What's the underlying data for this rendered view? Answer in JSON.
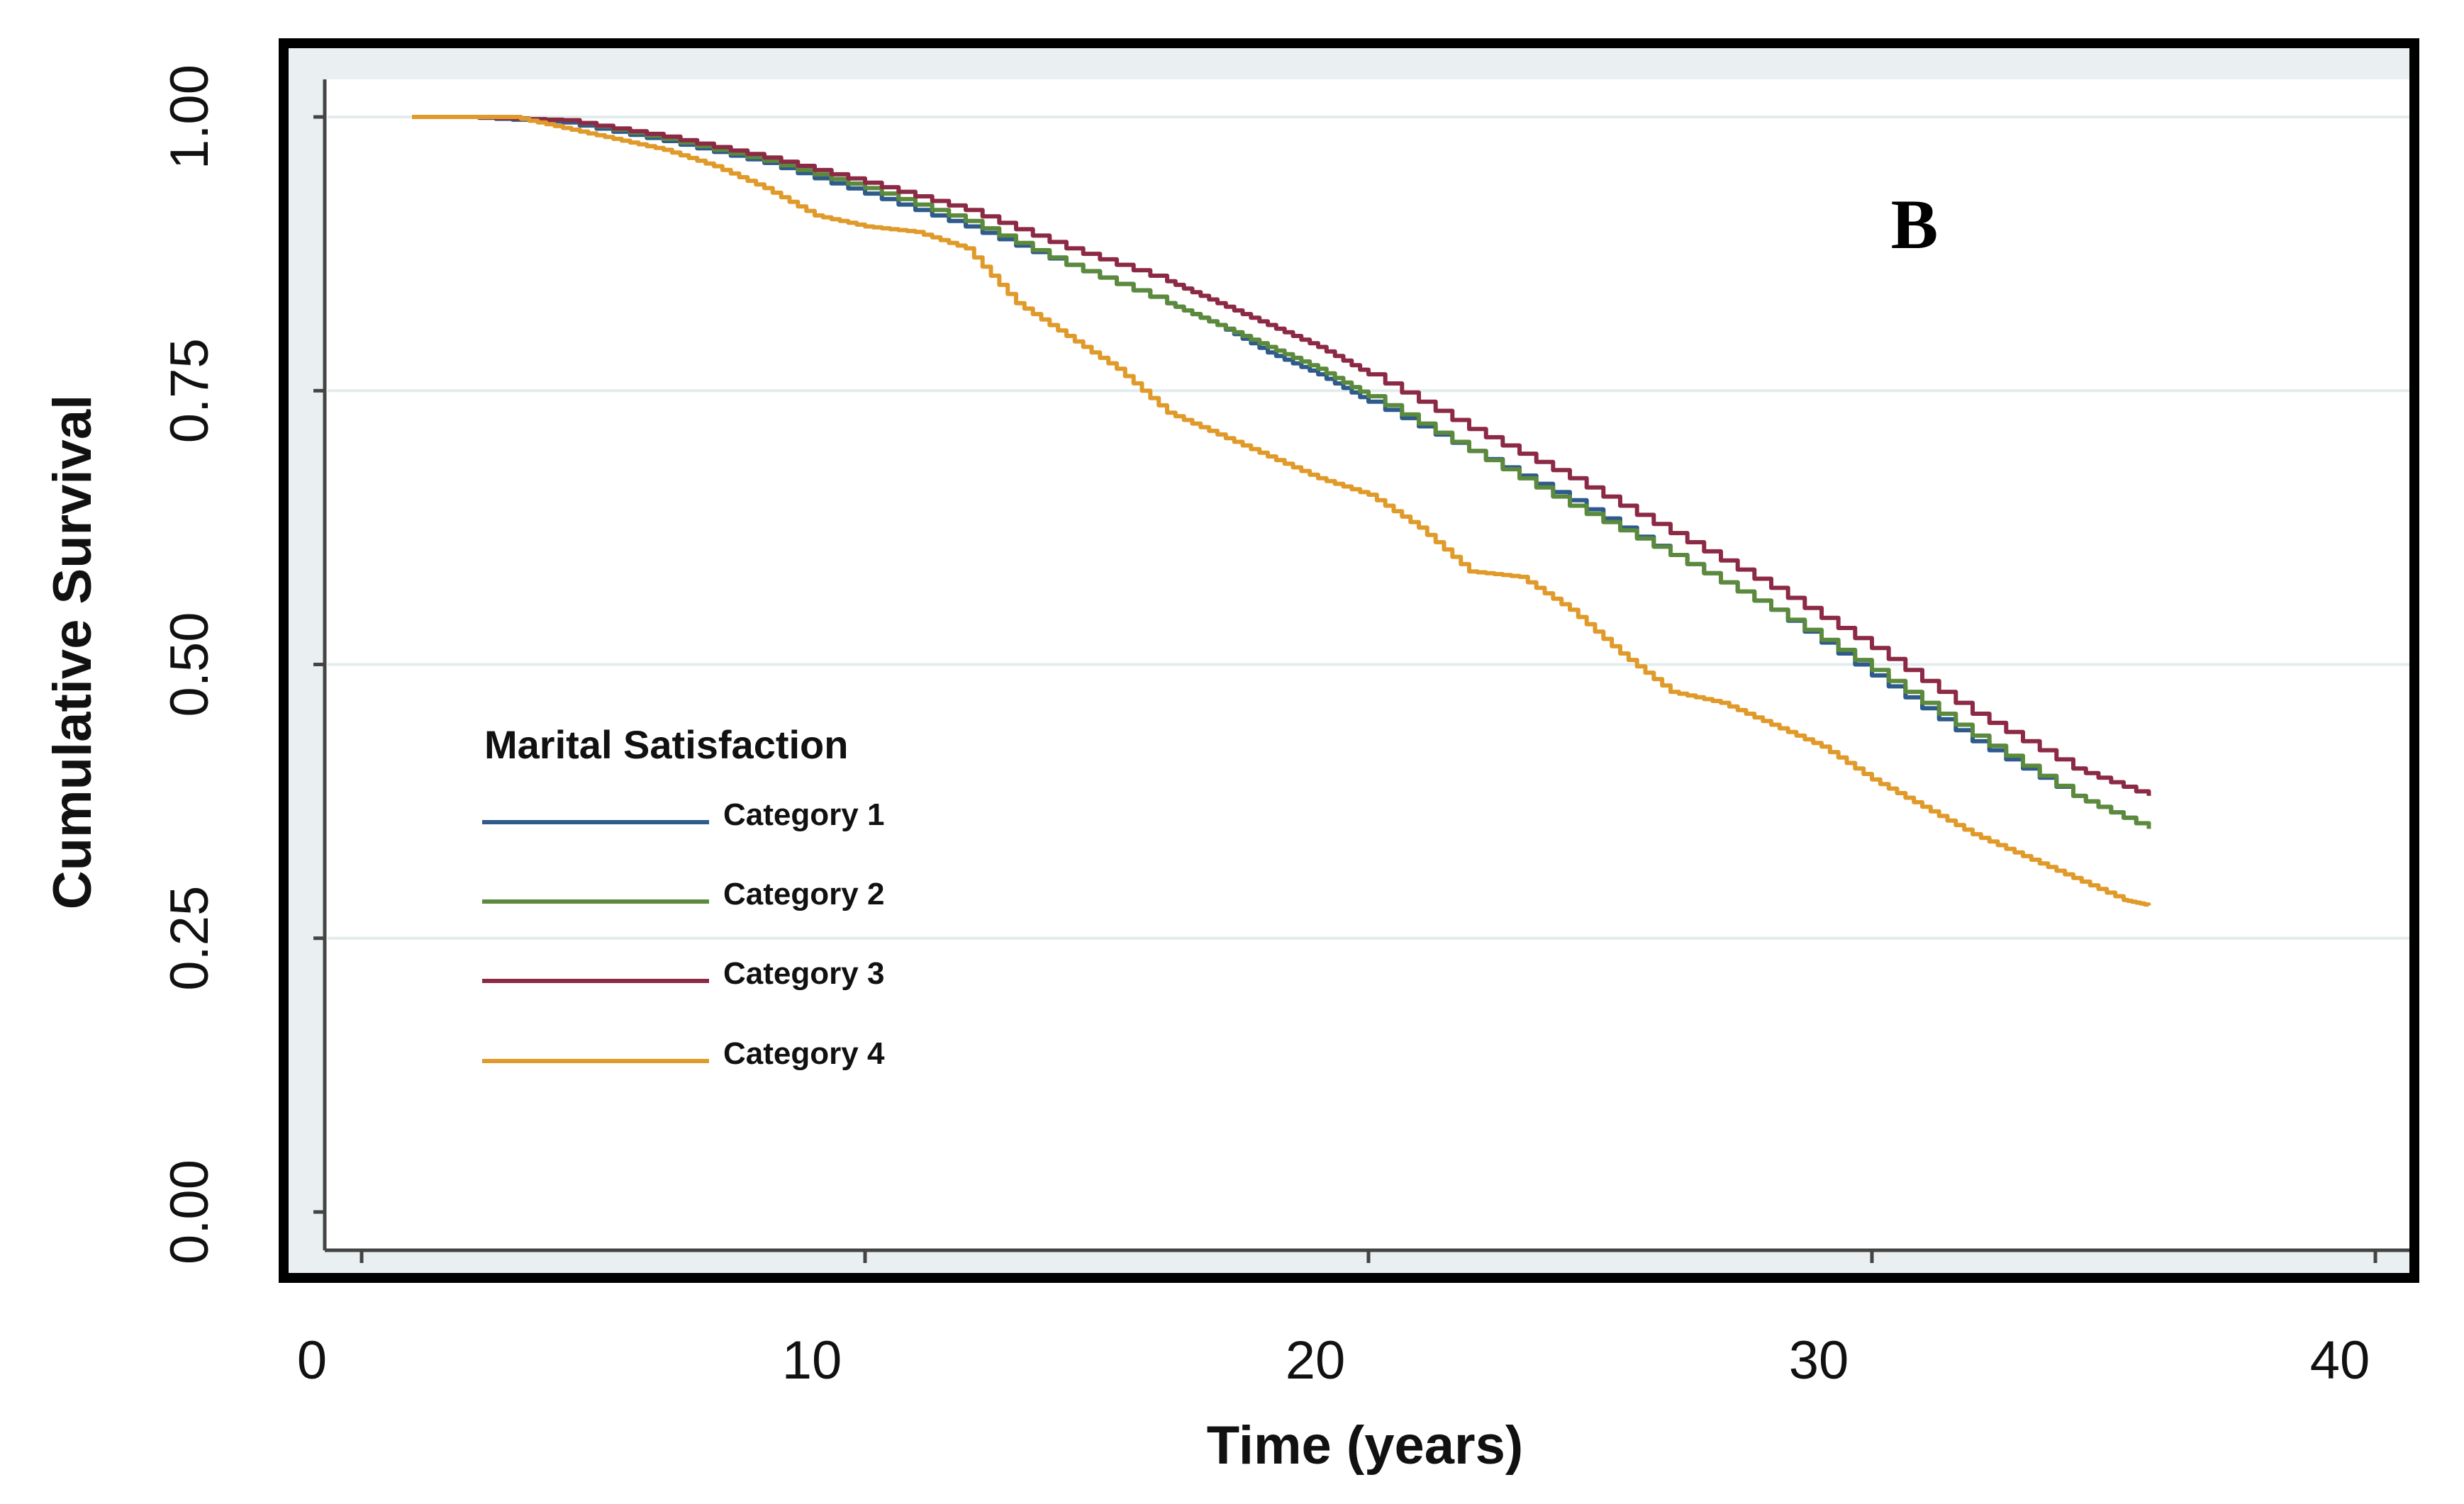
{
  "chart_data": {
    "type": "line",
    "title": "",
    "panel_label": "B",
    "xlabel": "Time (years)",
    "ylabel": "Cumulative Survival",
    "xlim": [
      0,
      40
    ],
    "ylim": [
      0,
      1
    ],
    "x_ticks": [
      0,
      10,
      20,
      30,
      40
    ],
    "x_tick_labels": [
      "0",
      "10",
      "20",
      "30",
      "40"
    ],
    "y_ticks": [
      0,
      0.25,
      0.5,
      0.75,
      1
    ],
    "y_tick_labels": [
      "0.00",
      "0.25",
      "0.50",
      "0.75",
      "1.00"
    ],
    "grid": "horizontal",
    "legend": {
      "title": "Marital Satisfaction",
      "placement": "middle-left"
    },
    "series": [
      {
        "name": "Category 1",
        "color": "#2e5a8c",
        "x": [
          1,
          2,
          4,
          6,
          8,
          10,
          12,
          14,
          16,
          17,
          18,
          19,
          20,
          22,
          24,
          26,
          28,
          30,
          32,
          34,
          35.5
        ],
        "values": [
          1.0,
          1.0,
          0.995,
          0.978,
          0.958,
          0.93,
          0.9,
          0.865,
          0.83,
          0.81,
          0.785,
          0.765,
          0.74,
          0.695,
          0.65,
          0.6,
          0.55,
          0.49,
          0.43,
          0.38,
          0.35
        ]
      },
      {
        "name": "Category 2",
        "color": "#5b8a3c",
        "x": [
          1,
          2,
          4,
          6,
          8,
          10,
          12,
          14,
          16,
          17,
          18,
          19,
          20,
          22,
          24,
          26,
          28,
          30,
          32,
          34,
          35.5
        ],
        "values": [
          1.0,
          1.0,
          0.997,
          0.98,
          0.96,
          0.935,
          0.905,
          0.865,
          0.83,
          0.81,
          0.79,
          0.77,
          0.745,
          0.695,
          0.645,
          0.6,
          0.55,
          0.495,
          0.435,
          0.38,
          0.35
        ]
      },
      {
        "name": "Category 3",
        "color": "#8c2a45",
        "x": [
          1,
          2,
          4,
          6,
          8,
          10,
          12,
          14,
          16,
          17,
          18,
          19,
          20,
          22,
          24,
          26,
          28,
          30,
          32,
          34,
          35.5
        ],
        "values": [
          1.0,
          1.0,
          0.997,
          0.982,
          0.963,
          0.94,
          0.915,
          0.88,
          0.85,
          0.83,
          0.81,
          0.79,
          0.765,
          0.715,
          0.67,
          0.62,
          0.57,
          0.515,
          0.455,
          0.405,
          0.38
        ]
      },
      {
        "name": "Category 4",
        "color": "#e09a2a",
        "x": [
          1,
          2,
          3,
          4,
          5,
          6,
          7,
          8,
          9,
          10,
          11,
          12,
          13,
          14,
          15,
          16,
          17,
          18,
          19,
          20,
          21,
          22,
          23,
          24,
          25,
          26,
          27,
          28,
          29,
          30,
          31,
          32,
          33,
          34,
          35,
          35.5
        ],
        "values": [
          1.0,
          1.0,
          1.0,
          0.99,
          0.98,
          0.97,
          0.955,
          0.935,
          0.91,
          0.9,
          0.895,
          0.88,
          0.83,
          0.8,
          0.77,
          0.73,
          0.71,
          0.69,
          0.67,
          0.655,
          0.625,
          0.585,
          0.58,
          0.55,
          0.51,
          0.475,
          0.465,
          0.445,
          0.425,
          0.395,
          0.37,
          0.345,
          0.325,
          0.305,
          0.285,
          0.28
        ]
      }
    ]
  }
}
